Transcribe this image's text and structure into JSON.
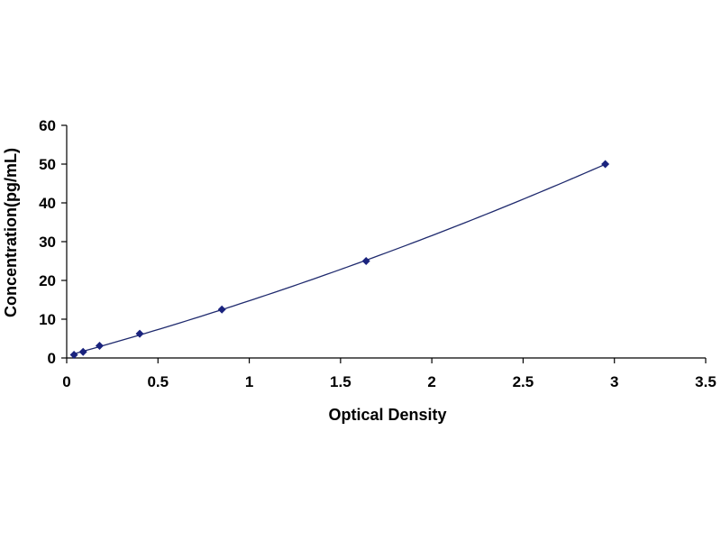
{
  "chart_data": {
    "type": "scatter",
    "xlabel": "Optical Density",
    "ylabel": "Concentration(pg/mL)",
    "xlim": [
      0,
      3.5
    ],
    "ylim": [
      0,
      60
    ],
    "xticks": [
      0,
      0.5,
      1,
      1.5,
      2,
      2.5,
      3,
      3.5
    ],
    "xtick_labels": [
      "0",
      "0.5",
      "1",
      "1.5",
      "2",
      "2.5",
      "3",
      "3.5"
    ],
    "yticks": [
      0,
      10,
      20,
      30,
      40,
      50,
      60
    ],
    "ytick_labels": [
      "0",
      "10",
      "20",
      "30",
      "40",
      "50",
      "60"
    ],
    "grid": false,
    "legend": "none",
    "series": [
      {
        "x": [
          0.04,
          0.09,
          0.18,
          0.4,
          0.85,
          1.64,
          2.95
        ],
        "y": [
          0.8,
          1.56,
          3.13,
          6.25,
          12.5,
          25,
          50
        ],
        "marker": "diamond",
        "fit_line": true
      }
    ],
    "colors": {
      "line": "#1f2a6e",
      "marker": "#1a237e",
      "axis": "#000000"
    }
  }
}
